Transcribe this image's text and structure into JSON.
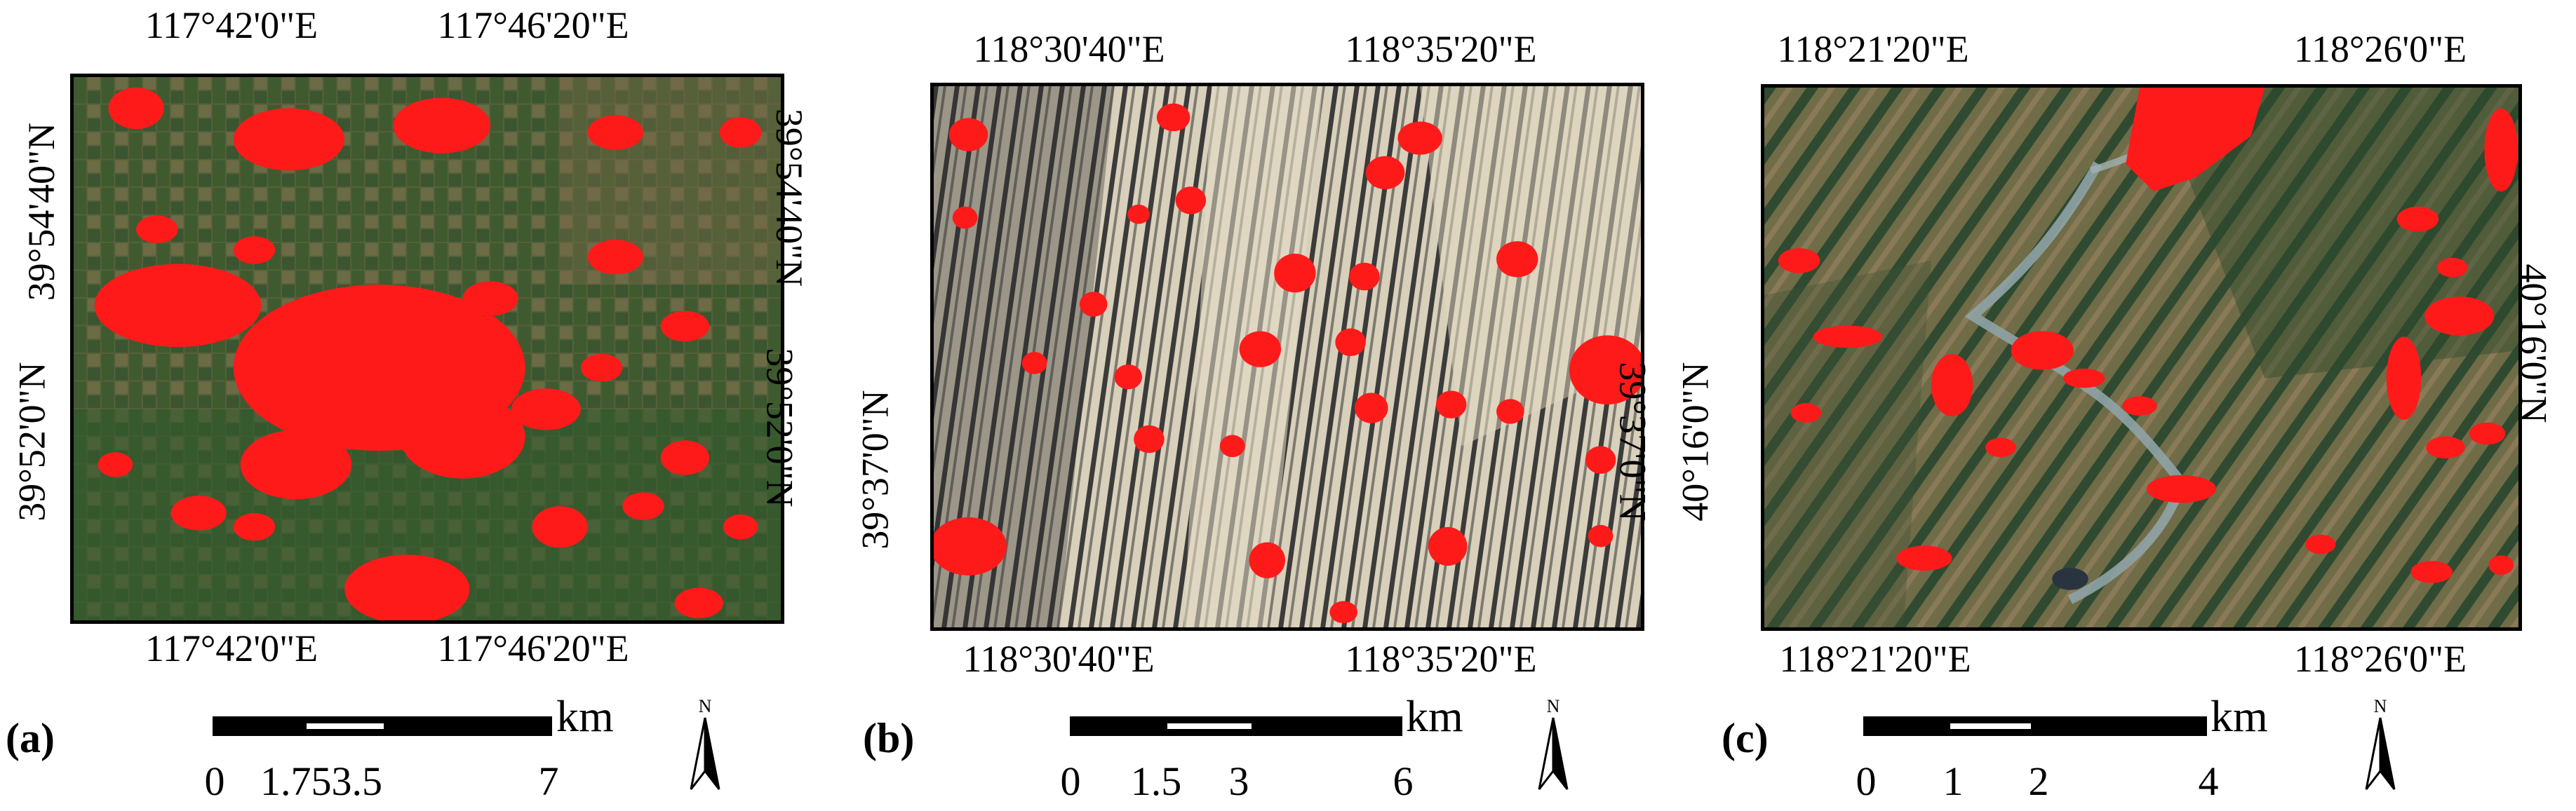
{
  "panels": [
    {
      "letter": "(a)",
      "lon_labels_top": [
        "117°42'0\"E",
        "117°46'20\"E"
      ],
      "lon_labels_bottom": [
        "117°42'0\"E",
        "117°46'20\"E"
      ],
      "lat_labels_left": [
        "39°54'40\"N",
        "39°52'0\"N"
      ],
      "lat_labels_right": [
        "39°54'40\"N",
        "39°52'0\"N"
      ],
      "scale_ticks": [
        "0",
        "1.753.5",
        "7"
      ],
      "scale_unit": "km",
      "north_label": "N",
      "map_colors": {
        "base": "#4f5a34",
        "field": "#3b5a2e",
        "urban": "#ff1a1a"
      }
    },
    {
      "letter": "(b)",
      "lon_labels_top": [
        "118°30'40\"E",
        "118°35'20\"E"
      ],
      "lon_labels_bottom": [
        "118°30'40\"E",
        "118°35'20\"E"
      ],
      "lat_labels_left": [
        "39°37'0\"N"
      ],
      "lat_labels_right": [
        "39°37'0\"N"
      ],
      "scale_ticks": [
        "0",
        "1.5",
        "3",
        "6"
      ],
      "scale_unit": "km",
      "north_label": "N",
      "map_colors": {
        "base": "#cfc6b0",
        "field": "#3a3a3a",
        "urban": "#ff1a1a"
      }
    },
    {
      "letter": "(c)",
      "lon_labels_top": [
        "118°21'20\"E",
        "118°26'0\"E"
      ],
      "lon_labels_bottom": [
        "118°21'20\"E",
        "118°26'0\"E"
      ],
      "lat_labels_left": [
        "40°16'0\"N"
      ],
      "lat_labels_right": [
        "40°16'0\"N"
      ],
      "scale_ticks": [
        "0",
        "1",
        "2",
        "4"
      ],
      "scale_unit": "km",
      "north_label": "N",
      "map_colors": {
        "base": "#6b6a45",
        "field": "#2f4a30",
        "urban": "#ff1a1a"
      }
    }
  ]
}
